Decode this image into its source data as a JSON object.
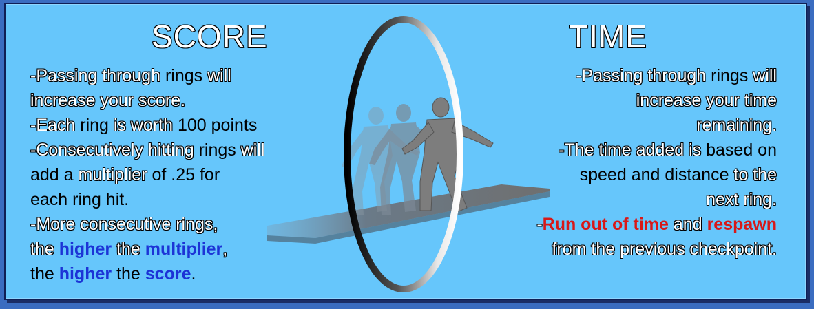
{
  "score": {
    "title": "SCORE",
    "l1a": "-Passing through ",
    "l1b": "rings",
    "l1c": " will",
    "l2": "increase your score.",
    "l3a": "-Each ",
    "l3b": "ring",
    "l3c": " is worth ",
    "l3d": "100 points",
    "l4a": "-Consecutively hitting ",
    "l4b": "rings",
    "l4c": " will",
    "l5a": "add a ",
    "l5b": "multiplier",
    "l5c": " of .25 for",
    "l6": "each ring hit.",
    "l7": "-More consecutive rings,",
    "l8a": "the ",
    "l8b": "higher",
    "l8c": " the ",
    "l8d": "multiplier",
    "l8e": ",",
    "l9a": "the ",
    "l9b": "higher",
    "l9c": " the ",
    "l9d": "score",
    "l9e": "."
  },
  "time": {
    "title": "TIME",
    "l1a": "-Passing through ",
    "l1b": "rings",
    "l1c": " will",
    "l2": "increase your time",
    "l3": "remaining.",
    "l4a": "-The time added is ",
    "l4b": "based on",
    "l5a": "speed and distance",
    "l5b": " to the",
    "l6": "next ring.",
    "l7a": "-",
    "l7b": "Run out of time",
    "l7c": " and ",
    "l7d": "respawn",
    "l8": "from the previous checkpoint."
  },
  "colors": {
    "background": "#66c6fb",
    "border": "#0f1f55",
    "highlight_blue": "#1c34d6",
    "highlight_red": "#d81818"
  },
  "illustration": {
    "ring": "ring-icon",
    "figure": "running-figure-icon",
    "track": "track-icon"
  }
}
